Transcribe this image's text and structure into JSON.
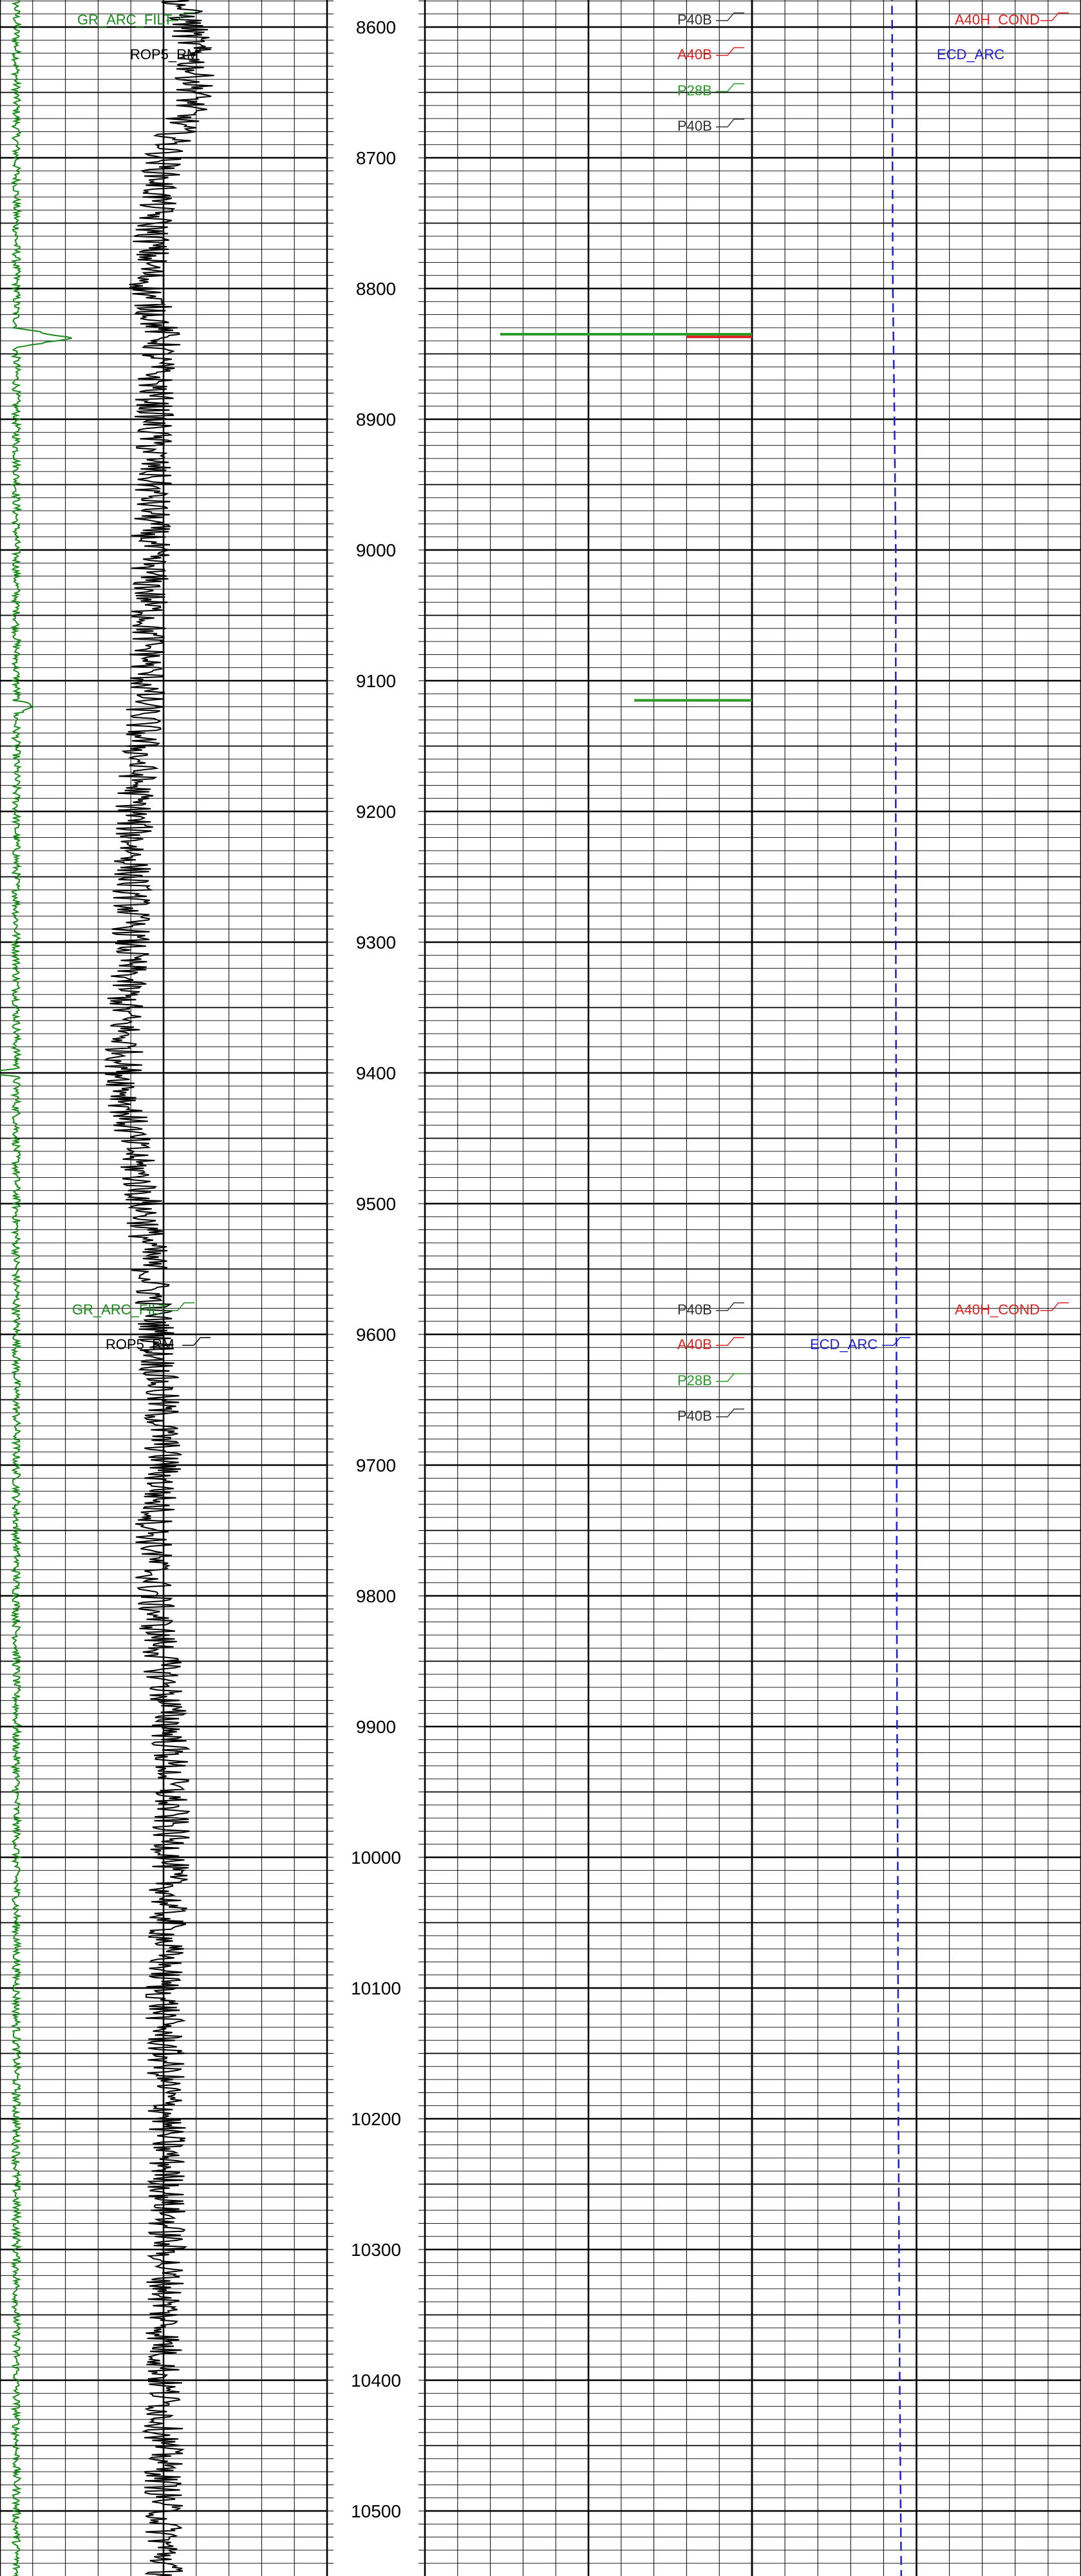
{
  "colors": {
    "gr": "#1a8a1a",
    "rop": "#000000",
    "ecd": "#1f1fd0",
    "resist_red": "#dd2222",
    "resist_green": "#2a9a2a",
    "resist_black": "#333333",
    "grid": "#000000"
  },
  "depth_track": {
    "labels": [
      "8600",
      "8700",
      "8800",
      "8900",
      "9000",
      "9100",
      "9200",
      "9300",
      "9400",
      "9500",
      "9600",
      "9700",
      "9800",
      "9900",
      "10000",
      "10100",
      "10200",
      "10300",
      "10400",
      "10500"
    ]
  },
  "curve_labels": {
    "top": {
      "gr": "GR_ARC_FILT",
      "rop": "ROP5_RM",
      "p40b_1": "P40B",
      "a40b": "A40B",
      "p28b": "P28B",
      "p40b_2": "P40B",
      "ecd": "ECD_ARC",
      "a40h": "A40H_COND"
    },
    "mid": {
      "gr": "GR_ARC_FILT",
      "rop": "ROP5_RM",
      "p40b_1": "P40B",
      "a40b": "A40B",
      "p28b": "P28B",
      "p40b_2": "P40B",
      "ecd": "ECD_ARC",
      "a40h": "A40H_COND"
    }
  },
  "chart_data": {
    "type": "line",
    "depth_range": [
      8562,
      10565
    ],
    "depth_ticks": [
      8600,
      8700,
      8800,
      8900,
      9000,
      9100,
      9200,
      9300,
      9400,
      9500,
      9600,
      9700,
      9800,
      9900,
      10000,
      10100,
      10200,
      10300,
      10400,
      10500
    ],
    "series": [
      {
        "name": "GR_ARC_FILT",
        "track": "left",
        "noise_amplitude": 0.012,
        "depths": [
          8562,
          8700,
          8830,
          8838,
          8845,
          9000,
          9115,
          9120,
          9125,
          9300,
          9397,
          9400,
          9403,
          9600,
          10000,
          10565
        ],
        "values": [
          0.05,
          0.05,
          0.05,
          0.22,
          0.05,
          0.05,
          0.05,
          0.11,
          0.05,
          0.05,
          0.05,
          -0.05,
          0.05,
          0.05,
          0.05,
          0.05
        ]
      },
      {
        "name": "ROP5_RM",
        "track": "left",
        "noise_amplitude": 0.06,
        "depths": [
          8562,
          8600,
          8650,
          8700,
          8750,
          8800,
          8840,
          8850,
          8900,
          9000,
          9100,
          9200,
          9300,
          9350,
          9400,
          9450,
          9500,
          9600,
          9700,
          9750,
          9800,
          9900,
          10000,
          10100,
          10200,
          10300,
          10400,
          10500,
          10565
        ],
        "values": [
          0.52,
          0.58,
          0.6,
          0.5,
          0.47,
          0.45,
          0.5,
          0.48,
          0.47,
          0.46,
          0.45,
          0.41,
          0.4,
          0.38,
          0.38,
          0.4,
          0.44,
          0.48,
          0.5,
          0.47,
          0.47,
          0.52,
          0.52,
          0.5,
          0.51,
          0.51,
          0.5,
          0.5,
          0.51
        ]
      },
      {
        "name": "ECD_ARC",
        "track": "right",
        "depths": [
          8562,
          8600,
          8700,
          8800,
          8900,
          9000,
          9100,
          9200,
          9300,
          9400,
          9500,
          9600,
          9700,
          9800,
          9900,
          10000,
          10100,
          10200,
          10300,
          10400,
          10500,
          10565
        ],
        "values": [
          0.425,
          0.426,
          0.427,
          0.428,
          0.433,
          0.437,
          0.437,
          0.437,
          0.437,
          0.438,
          0.438,
          0.439,
          0.44,
          0.44,
          0.441,
          0.443,
          0.444,
          0.445,
          0.447,
          0.449,
          0.452,
          0.454
        ]
      },
      {
        "name": "P28B",
        "track": "middle",
        "segments": [
          {
            "depth": 8835,
            "from": 0.23,
            "to": 1.0
          },
          {
            "depth": 9115,
            "from": 0.64,
            "to": 1.0
          }
        ]
      },
      {
        "name": "A40B",
        "track": "middle",
        "segments": [
          {
            "depth": 8837,
            "from": 0.8,
            "to": 1.0
          }
        ]
      }
    ]
  }
}
